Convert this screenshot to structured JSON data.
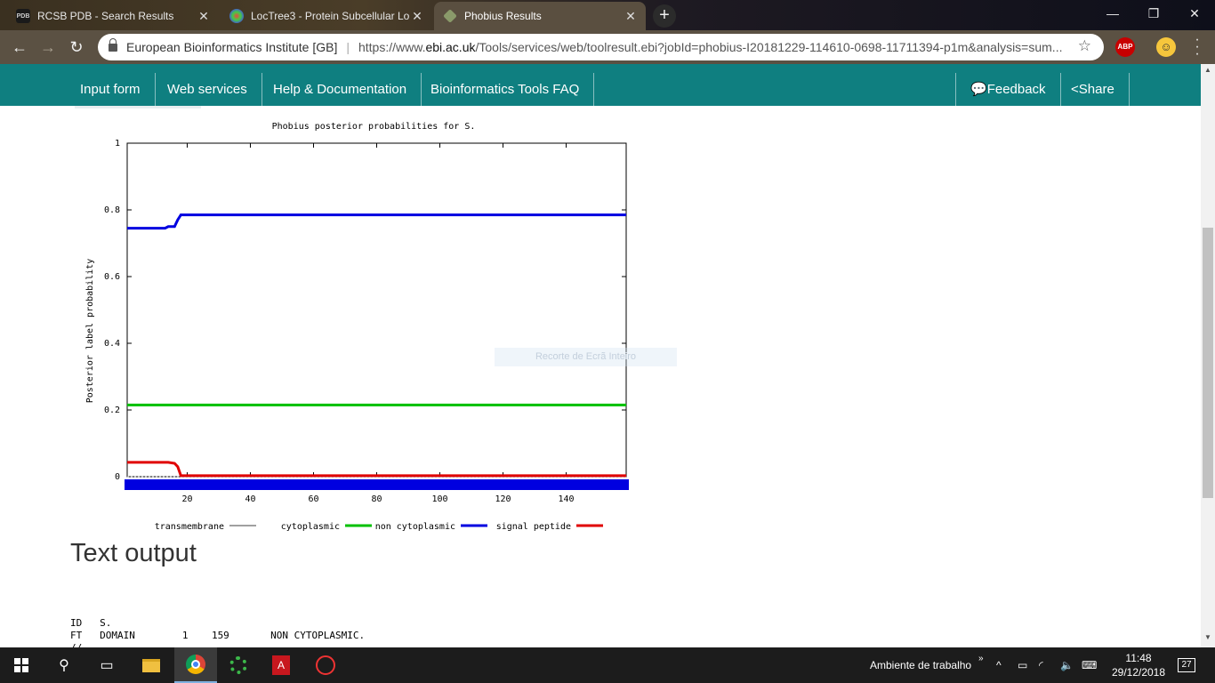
{
  "tabs": [
    {
      "title": "RCSB PDB - Search Results",
      "favicon": "PDB",
      "active": false
    },
    {
      "title": "LocTree3 - Protein Subcellular Lo",
      "favicon": "",
      "active": false
    },
    {
      "title": "Phobius Results",
      "favicon": "",
      "active": true
    }
  ],
  "window_controls": {
    "minimize": "—",
    "restore": "❐",
    "close": "✕"
  },
  "addressbar": {
    "org": "European Bioinformatics Institute [GB]",
    "url_prefix": "https://www.",
    "url_domain": "ebi.ac.uk",
    "url_rest": "/Tools/services/web/toolresult.ebi?jobId=phobius-I20181229-114610-0698-11711394-p1m&analysis=sum..."
  },
  "extensions": {
    "adblock": "ABP"
  },
  "sitenav": {
    "items": [
      "Input form",
      "Web services",
      "Help & Documentation",
      "Bioinformatics Tools FAQ"
    ],
    "feedback": "Feedback",
    "share": "Share"
  },
  "chart_data": {
    "type": "line",
    "title": "Phobius posterior probabilities for S.",
    "ylabel": "Posterior label probability",
    "xlabel": "",
    "xlim": [
      1,
      159
    ],
    "ylim": [
      0,
      1
    ],
    "xticks": [
      20,
      40,
      60,
      80,
      100,
      120,
      140
    ],
    "yticks": [
      "0",
      "0.2",
      "0.4",
      "0.6",
      "0.8",
      "1"
    ],
    "legend_position": "bottom",
    "series": [
      {
        "name": "transmembrane",
        "color": "#a0a0a0",
        "x": [
          1,
          159
        ],
        "y": [
          0,
          0
        ]
      },
      {
        "name": "cytoplasmic",
        "color": "#00c000",
        "x": [
          1,
          159
        ],
        "y": [
          0.215,
          0.215
        ]
      },
      {
        "name": "non cytoplasmic",
        "color": "#0000e0",
        "x": [
          1,
          13,
          14,
          16,
          17,
          18,
          159
        ],
        "y": [
          0.745,
          0.745,
          0.75,
          0.75,
          0.77,
          0.785,
          0.785
        ]
      },
      {
        "name": "signal peptide",
        "color": "#e00000",
        "x": [
          1,
          14,
          16,
          17,
          18,
          159
        ],
        "y": [
          0.043,
          0.043,
          0.04,
          0.03,
          0.003,
          0.003
        ]
      }
    ]
  },
  "overlay_text": "Recorte de Ecrã Inteiro",
  "text_output": {
    "heading": "Text output",
    "lines": [
      "ID   S.",
      "FT   DOMAIN        1    159       NON CYTOPLASMIC.",
      "//"
    ]
  },
  "taskbar": {
    "desktop_label": "Ambiente de trabalho",
    "time": "11:48",
    "date": "29/12/2018",
    "notifications": "27"
  }
}
